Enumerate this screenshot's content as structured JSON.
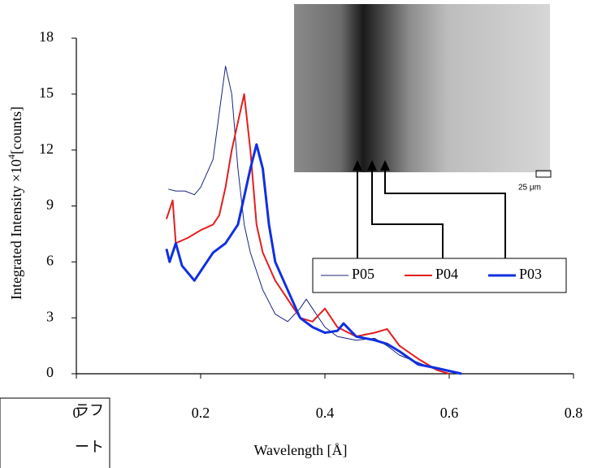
{
  "chart_data": {
    "type": "line",
    "x_label": "Wavelength [Å]",
    "y_label": "Integrated Intensity ×10",
    "y_label_sup": "4",
    "y_label_unit": "[counts]",
    "xlim": [
      0,
      0.8
    ],
    "xticks": [
      0,
      0.2,
      0.4,
      0.6,
      0.8
    ],
    "ylim": [
      0,
      18
    ],
    "yticks": [
      0,
      3,
      6,
      9,
      12,
      15,
      18
    ],
    "grid": false,
    "inset_scale_label": "25 μm",
    "side_note": [
      "ラフ",
      "ート"
    ],
    "series": [
      {
        "name": "P05",
        "color": "#1a237e",
        "width": 1,
        "x": [
          0.148,
          0.16,
          0.175,
          0.19,
          0.2,
          0.22,
          0.23,
          0.24,
          0.25,
          0.26,
          0.27,
          0.28,
          0.3,
          0.32,
          0.34,
          0.36,
          0.37,
          0.38,
          0.4,
          0.42,
          0.45,
          0.48,
          0.5,
          0.52,
          0.55,
          0.58,
          0.6
        ],
        "values": [
          9.9,
          9.8,
          9.8,
          9.6,
          10,
          11.5,
          14,
          16.5,
          15,
          11,
          8,
          6.5,
          4.5,
          3.2,
          2.8,
          3.5,
          4,
          3.5,
          2.5,
          2,
          1.8,
          1.9,
          1.5,
          1,
          0.6,
          0.2,
          0
        ]
      },
      {
        "name": "P04",
        "color": "#e31e1e",
        "width": 2,
        "x": [
          0.145,
          0.155,
          0.16,
          0.18,
          0.2,
          0.22,
          0.23,
          0.24,
          0.25,
          0.26,
          0.27,
          0.28,
          0.29,
          0.3,
          0.32,
          0.34,
          0.36,
          0.38,
          0.4,
          0.42,
          0.45,
          0.48,
          0.5,
          0.52,
          0.55,
          0.58,
          0.6
        ],
        "values": [
          8.3,
          9.3,
          7,
          7.3,
          7.7,
          8,
          8.5,
          10,
          12,
          13.5,
          15,
          12,
          8,
          6.5,
          5,
          4,
          3,
          2.8,
          3.5,
          2.5,
          2,
          2.2,
          2.4,
          1.5,
          0.8,
          0.2,
          0
        ]
      },
      {
        "name": "P03",
        "color": "#1030e0",
        "width": 3,
        "x": [
          0.145,
          0.15,
          0.16,
          0.17,
          0.19,
          0.2,
          0.22,
          0.24,
          0.26,
          0.27,
          0.28,
          0.29,
          0.3,
          0.31,
          0.32,
          0.34,
          0.36,
          0.38,
          0.4,
          0.42,
          0.43,
          0.45,
          0.48,
          0.5,
          0.52,
          0.55,
          0.58,
          0.62
        ],
        "values": [
          6.7,
          6,
          7,
          5.8,
          5,
          5.5,
          6.5,
          7,
          8,
          9.5,
          11,
          12.3,
          11,
          8,
          6,
          4.5,
          3,
          2.5,
          2.2,
          2.3,
          2.7,
          2,
          1.8,
          1.6,
          1.2,
          0.5,
          0.3,
          0
        ]
      }
    ]
  }
}
